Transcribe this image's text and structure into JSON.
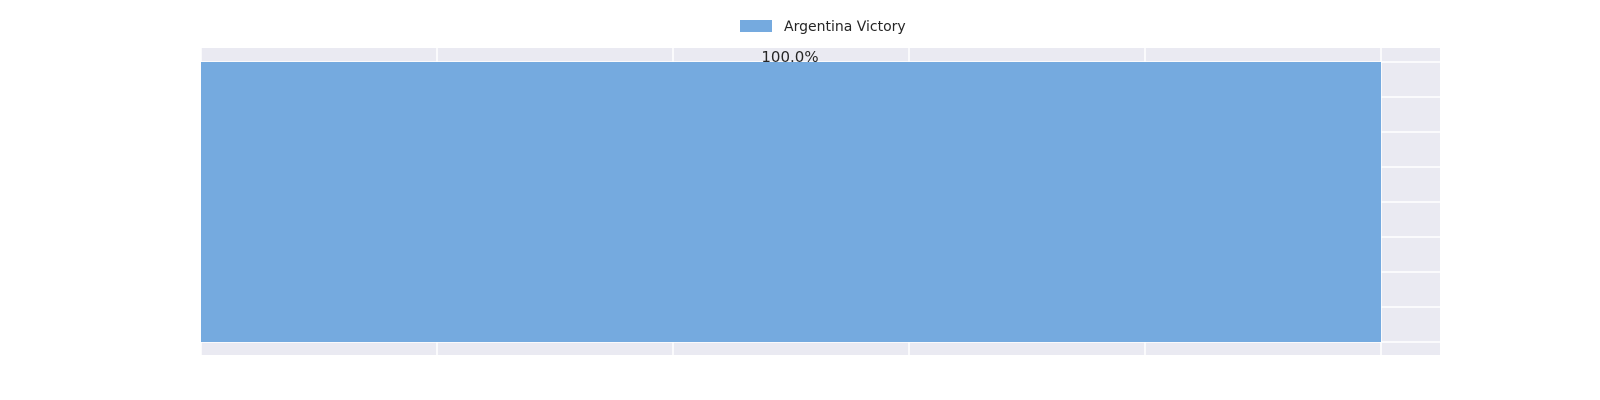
{
  "chart_data": {
    "type": "bar",
    "orientation": "horizontal",
    "stacked": true,
    "categories": [
      ""
    ],
    "series": [
      {
        "name": "Argentina Victory",
        "values": [
          100.0
        ],
        "label": "100.0%",
        "color": "#75aadf"
      }
    ],
    "title": "",
    "xlabel": "",
    "ylabel": "",
    "xlim": [
      0,
      105
    ],
    "grid": true,
    "legend_position": "top-center",
    "colors": {
      "background": "#eaeaf2",
      "grid": "#ffffff",
      "text": "#262626"
    }
  }
}
